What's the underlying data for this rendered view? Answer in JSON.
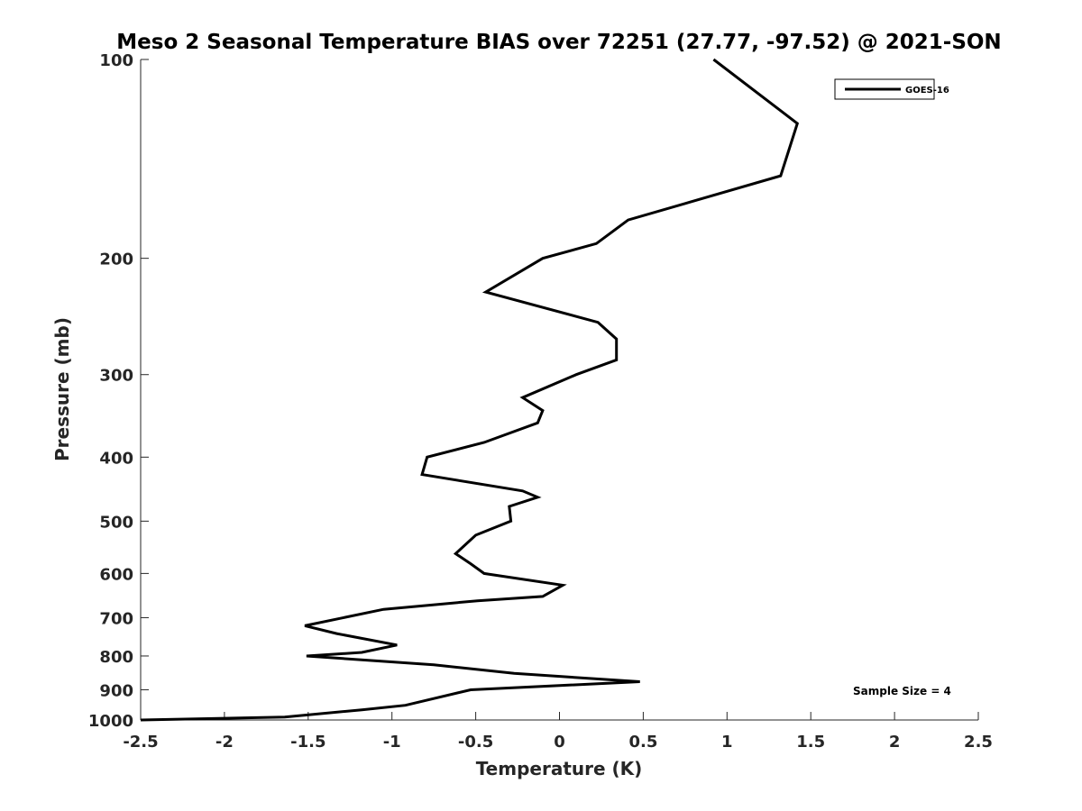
{
  "chart_data": {
    "type": "line",
    "title": "Meso 2 Seasonal Temperature BIAS over 72251 (27.77, -97.52) @ 2021-SON",
    "xlabel": "Temperature (K)",
    "ylabel": "Pressure (mb)",
    "xlim": [
      -2.5,
      2.5
    ],
    "ylim": [
      100,
      1000
    ],
    "yscale": "log",
    "reverse_y": true,
    "grid": false,
    "x_ticks": [
      -2.5,
      -2,
      -1.5,
      -1,
      -0.5,
      0,
      0.5,
      1,
      1.5,
      2,
      2.5
    ],
    "x_tick_labels": [
      "-2.5",
      "-2",
      "-1.5",
      "-1",
      "-0.5",
      "0",
      "0.5",
      "1",
      "1.5",
      "2",
      "2.5"
    ],
    "y_ticks": [
      100,
      200,
      300,
      400,
      500,
      600,
      700,
      800,
      900,
      1000
    ],
    "y_tick_labels": [
      "100",
      "200",
      "300",
      "400",
      "500",
      "600",
      "700",
      "800",
      "900",
      "1000"
    ],
    "legend": {
      "position": "top-right",
      "entries": [
        "GOES-16"
      ]
    },
    "annotation": "Sample Size = 4",
    "series": [
      {
        "name": "GOES-16",
        "color": "#000000",
        "points": [
          [
            0.92,
            100
          ],
          [
            1.42,
            125
          ],
          [
            1.32,
            150
          ],
          [
            0.41,
            175
          ],
          [
            0.22,
            190
          ],
          [
            -0.1,
            200
          ],
          [
            -0.44,
            225
          ],
          [
            0.23,
            250
          ],
          [
            0.34,
            265
          ],
          [
            0.34,
            285
          ],
          [
            0.1,
            300
          ],
          [
            -0.22,
            325
          ],
          [
            -0.1,
            340
          ],
          [
            -0.13,
            355
          ],
          [
            -0.45,
            380
          ],
          [
            -0.79,
            400
          ],
          [
            -0.82,
            425
          ],
          [
            -0.22,
            450
          ],
          [
            -0.13,
            460
          ],
          [
            -0.3,
            475
          ],
          [
            -0.29,
            500
          ],
          [
            -0.5,
            525
          ],
          [
            -0.62,
            560
          ],
          [
            -0.53,
            580
          ],
          [
            -0.45,
            600
          ],
          [
            0.02,
            625
          ],
          [
            -0.1,
            650
          ],
          [
            -0.49,
            660
          ],
          [
            -1.05,
            680
          ],
          [
            -1.52,
            720
          ],
          [
            -1.33,
            740
          ],
          [
            -0.97,
            770
          ],
          [
            -1.18,
            790
          ],
          [
            -1.51,
            800
          ],
          [
            -0.75,
            825
          ],
          [
            -0.27,
            850
          ],
          [
            0.48,
            875
          ],
          [
            -0.53,
            900
          ],
          [
            -0.92,
            950
          ],
          [
            -1.18,
            965
          ],
          [
            -1.64,
            990
          ],
          [
            -2.5,
            1000
          ]
        ]
      }
    ]
  }
}
